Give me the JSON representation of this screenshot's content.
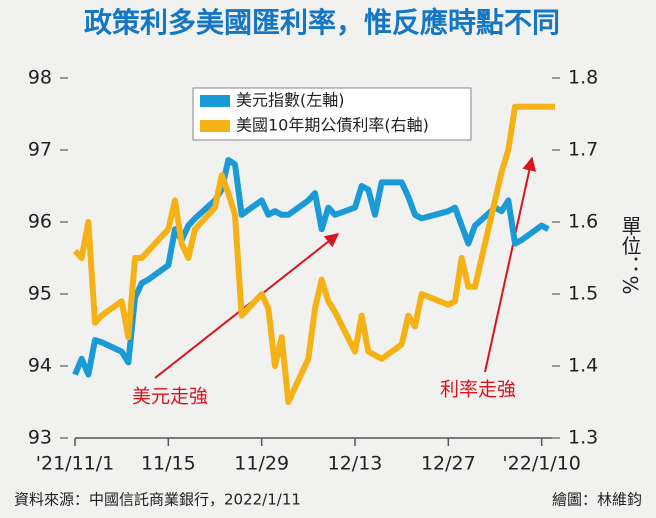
{
  "chart_data": {
    "type": "line",
    "title": "政策利多美國匯利率，惟反應時點不同",
    "y2_label": "單位：%",
    "source": "資料來源：中國信託商業銀行，2022/1/11",
    "credit": "繪圖：林維鈞",
    "annotations": [
      "美元走強",
      "利率走強"
    ],
    "legend": "top",
    "x": [
      0,
      1,
      2,
      3,
      4,
      7,
      8,
      9,
      10,
      11,
      14,
      15,
      16,
      17,
      18,
      21,
      22,
      23,
      24,
      25,
      28,
      29,
      30,
      31,
      32,
      35,
      36,
      37,
      38,
      39,
      42,
      43,
      44,
      45,
      46,
      49,
      50,
      51,
      52,
      56,
      57,
      58,
      59,
      60,
      63,
      64,
      65,
      66,
      67,
      70,
      71,
      72
    ],
    "xlim": [
      0,
      72
    ],
    "xticks": [
      {
        "value": 0,
        "label": "'21/11/1"
      },
      {
        "value": 14,
        "label": "11/15"
      },
      {
        "value": 28,
        "label": "11/29"
      },
      {
        "value": 42,
        "label": "12/13"
      },
      {
        "value": 56,
        "label": "12/27"
      },
      {
        "value": 70,
        "label": "'22/1/10"
      }
    ],
    "ylim": [
      93,
      98
    ],
    "yticks": [
      93,
      94,
      95,
      96,
      97,
      98
    ],
    "y2lim": [
      1.3,
      1.8
    ],
    "y2ticks": [
      1.3,
      1.4,
      1.5,
      1.6,
      1.7,
      1.8
    ],
    "series": [
      {
        "name": "美元指數(左軸)",
        "color": "#1a9ad6",
        "values": [
          93.88,
          94.1,
          93.88,
          94.36,
          94.33,
          94.2,
          94.05,
          94.95,
          95.15,
          95.2,
          95.4,
          95.9,
          95.75,
          95.95,
          96.05,
          96.3,
          96.45,
          96.86,
          96.8,
          96.1,
          96.3,
          96.1,
          96.15,
          96.1,
          96.1,
          96.3,
          96.4,
          95.9,
          96.2,
          96.1,
          96.2,
          96.5,
          96.45,
          96.1,
          96.55,
          96.55,
          96.35,
          96.1,
          96.05,
          96.15,
          96.2,
          95.95,
          95.7,
          95.95,
          96.2,
          96.15,
          96.3,
          95.7,
          95.75,
          95.95,
          95.9,
          null
        ]
      },
      {
        "name": "美國10年期公債利率(右軸)",
        "color": "#f5b217",
        "axis": "y2",
        "values": [
          1.56,
          1.55,
          1.6,
          1.46,
          1.47,
          1.49,
          1.44,
          1.55,
          1.55,
          1.56,
          1.59,
          1.63,
          1.57,
          1.55,
          1.59,
          1.62,
          1.665,
          1.64,
          1.61,
          1.47,
          1.5,
          1.48,
          1.4,
          1.44,
          1.35,
          1.41,
          1.48,
          1.52,
          1.49,
          1.475,
          1.42,
          1.47,
          1.42,
          1.415,
          1.41,
          1.43,
          1.47,
          1.455,
          1.5,
          1.485,
          1.49,
          1.55,
          1.51,
          1.51,
          1.63,
          1.67,
          1.7,
          1.76,
          1.76,
          1.76,
          1.76,
          1.76
        ]
      }
    ]
  }
}
